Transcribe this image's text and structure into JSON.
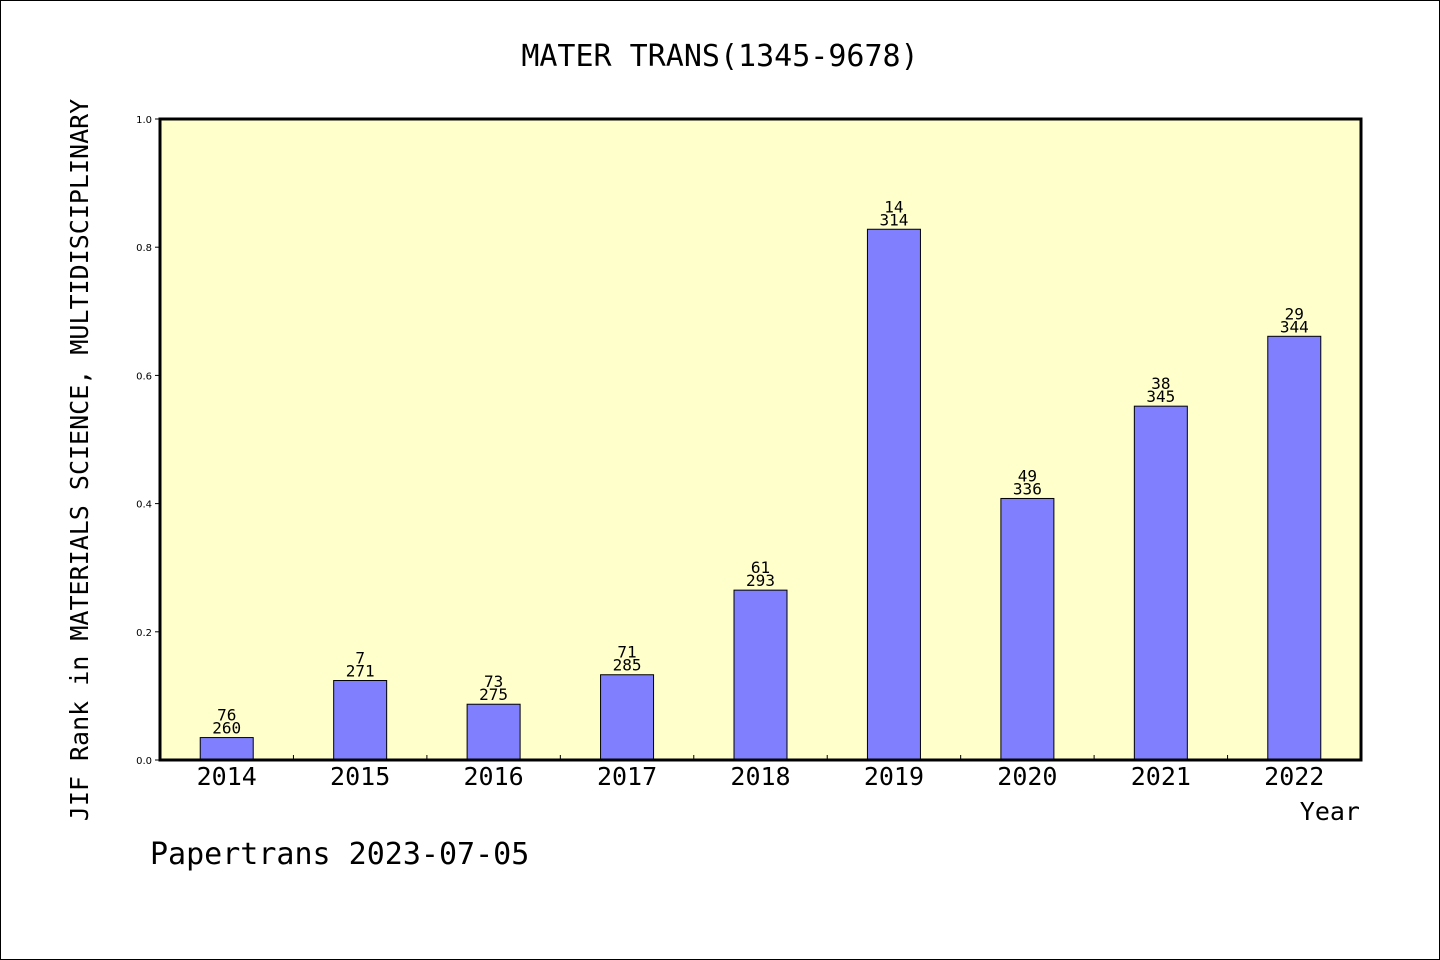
{
  "chart_data": {
    "type": "bar",
    "title": "MATER TRANS(1345-9678)",
    "ylabel": "JIF Rank in MATERIALS SCIENCE, MULTIDISCIPLINARY",
    "xlabel": "Year",
    "categories": [
      "2014",
      "2015",
      "2016",
      "2017",
      "2018",
      "2019",
      "2020",
      "2021",
      "2022"
    ],
    "values": [
      0.035,
      0.124,
      0.087,
      0.133,
      0.265,
      0.828,
      0.408,
      0.552,
      0.661
    ],
    "rank": [
      "76",
      "7",
      "73",
      "71",
      "61",
      "14",
      "49",
      "38",
      "29"
    ],
    "total": [
      "260",
      "271",
      "275",
      "285",
      "293",
      "314",
      "336",
      "345",
      "344"
    ],
    "ylim": [
      0,
      1.0
    ],
    "yticks": [
      "0.0",
      "0.2",
      "0.4",
      "0.6",
      "0.8",
      "1.0"
    ],
    "grid": false,
    "colors": {
      "plot_bg": "#ffffcc",
      "bar": "#8080ff",
      "bar_edge": "#000000"
    }
  },
  "footer": "Papertrans 2023-07-05"
}
